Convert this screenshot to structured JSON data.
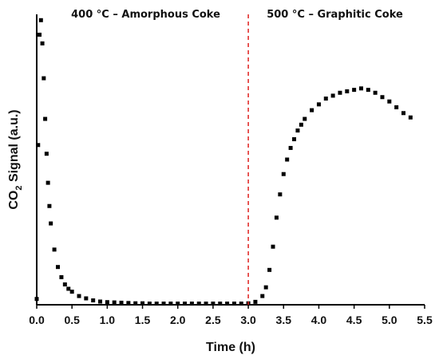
{
  "chart_data": {
    "type": "scatter",
    "xlabel": "Time (h)",
    "ylabel_main": "CO",
    "ylabel_sub": "2",
    "ylabel_rest": " Signal (a.u.)",
    "xlim": [
      0,
      5.5
    ],
    "ylim": [
      0,
      1
    ],
    "xticks": [
      "0.0",
      "0.5",
      "1.0",
      "1.5",
      "2.0",
      "2.5",
      "3.0",
      "3.5",
      "4.0",
      "4.5",
      "5.0",
      "5.5"
    ],
    "divider_x": 3.0,
    "divider_color": "#e0201e",
    "marker_color": "#000000",
    "regions": [
      {
        "label": "400 °C – Amorphous Coke"
      },
      {
        "label": "500 °C – Graphitic Coke"
      }
    ],
    "series": [
      {
        "x": [
          0.0,
          0.02,
          0.04,
          0.06,
          0.08,
          0.1,
          0.12,
          0.14,
          0.16,
          0.18,
          0.2,
          0.25,
          0.3,
          0.35,
          0.4,
          0.45,
          0.5,
          0.6,
          0.7,
          0.8,
          0.9,
          1.0,
          1.1,
          1.2,
          1.3,
          1.4,
          1.5,
          1.6,
          1.7,
          1.8,
          1.9,
          2.0,
          2.1,
          2.2,
          2.3,
          2.4,
          2.5,
          2.6,
          2.7,
          2.8,
          2.9,
          3.0,
          3.1,
          3.2,
          3.25,
          3.3,
          3.35,
          3.4,
          3.45,
          3.5,
          3.55,
          3.6,
          3.65,
          3.7,
          3.75,
          3.8,
          3.9,
          4.0,
          4.1,
          4.2,
          4.3,
          4.4,
          4.5,
          4.6,
          4.7,
          4.8,
          4.9,
          5.0,
          5.1,
          5.2,
          5.3
        ],
        "y": [
          0.02,
          0.55,
          0.93,
          0.98,
          0.9,
          0.78,
          0.64,
          0.52,
          0.42,
          0.34,
          0.28,
          0.19,
          0.13,
          0.095,
          0.07,
          0.055,
          0.045,
          0.03,
          0.022,
          0.015,
          0.011,
          0.009,
          0.008,
          0.007,
          0.006,
          0.005,
          0.005,
          0.004,
          0.004,
          0.004,
          0.004,
          0.004,
          0.004,
          0.004,
          0.004,
          0.004,
          0.004,
          0.004,
          0.004,
          0.004,
          0.004,
          0.005,
          0.01,
          0.03,
          0.06,
          0.12,
          0.2,
          0.3,
          0.38,
          0.45,
          0.5,
          0.54,
          0.57,
          0.6,
          0.62,
          0.64,
          0.67,
          0.69,
          0.71,
          0.72,
          0.73,
          0.735,
          0.74,
          0.745,
          0.74,
          0.73,
          0.715,
          0.7,
          0.68,
          0.66,
          0.645
        ]
      }
    ]
  }
}
